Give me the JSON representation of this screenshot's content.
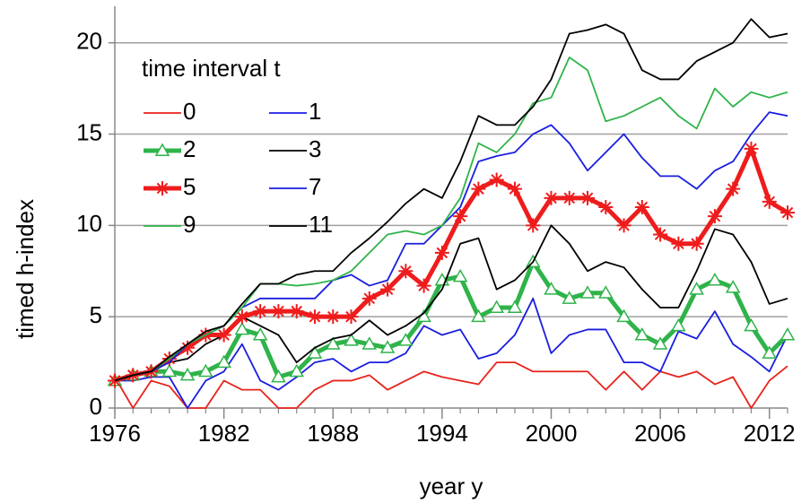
{
  "chart_data": {
    "type": "line",
    "xlabel": "year y",
    "ylabel": "timed h-index",
    "legend_title": "time interval t",
    "x": [
      1976,
      1977,
      1978,
      1979,
      1980,
      1981,
      1982,
      1983,
      1984,
      1985,
      1986,
      1987,
      1988,
      1989,
      1990,
      1991,
      1992,
      1993,
      1994,
      1995,
      1996,
      1997,
      1998,
      1999,
      2000,
      2001,
      2002,
      2003,
      2004,
      2005,
      2006,
      2007,
      2008,
      2009,
      2010,
      2011,
      2012,
      2013
    ],
    "xlim": [
      1976,
      2013
    ],
    "xticks": [
      1976,
      1982,
      1988,
      1994,
      2000,
      2006,
      2012
    ],
    "ylim": [
      0,
      22
    ],
    "yticks": [
      0,
      5,
      10,
      15,
      20
    ],
    "grid": true,
    "legend": "upper left",
    "series": [
      {
        "name": "0",
        "color": "#e8231c",
        "width": 1.8,
        "values": [
          1.7,
          0,
          1.5,
          1.2,
          0,
          0,
          1.5,
          1,
          1,
          0,
          0,
          1,
          1.5,
          1.5,
          1.8,
          1,
          1.5,
          2,
          1.7,
          1.5,
          1.3,
          2.5,
          2.5,
          2,
          2,
          2,
          2,
          1,
          2,
          1,
          2,
          1.7,
          2,
          1.3,
          1.7,
          0,
          1.5,
          2.3
        ]
      },
      {
        "name": "1",
        "color": "#1a1ee0",
        "width": 1.8,
        "values": [
          1.5,
          1.5,
          1.7,
          1.7,
          0,
          1.5,
          2,
          3.5,
          1.5,
          1,
          1.7,
          2.5,
          2.7,
          2,
          2.5,
          2.5,
          3,
          4.5,
          4,
          4.3,
          2.7,
          3,
          4,
          6,
          3,
          4,
          4.3,
          4.3,
          2.5,
          2.5,
          2,
          4.2,
          3.8,
          5.3,
          3.5,
          2.8,
          2,
          4
        ]
      },
      {
        "name": "2",
        "color": "#2fb34a",
        "width": 5,
        "marker": "triangle",
        "values": [
          1.5,
          1.8,
          2,
          2,
          1.8,
          2,
          2.5,
          4.3,
          4,
          1.7,
          2,
          3,
          3.5,
          3.7,
          3.5,
          3.3,
          3.7,
          5,
          7,
          7.2,
          5,
          5.5,
          5.5,
          8,
          6.5,
          6,
          6.3,
          6.3,
          5,
          4,
          3.5,
          4.5,
          6.5,
          7,
          6.6,
          4.5,
          3,
          4
        ]
      },
      {
        "name": "3",
        "color": "#000000",
        "width": 1.8,
        "values": [
          1.5,
          1.8,
          2,
          2.5,
          2.7,
          3.5,
          4,
          5,
          4.5,
          4,
          2.5,
          3.3,
          3.8,
          4,
          4.8,
          4,
          4.5,
          5.2,
          6.5,
          9,
          9.3,
          6.5,
          7,
          8,
          10,
          9,
          7.5,
          8,
          7.7,
          6.5,
          5.5,
          5.5,
          7.5,
          9.8,
          9.5,
          8,
          5.7,
          6
        ]
      },
      {
        "name": "5",
        "color": "#ee1c1c",
        "width": 5,
        "marker": "star",
        "values": [
          1.5,
          1.8,
          2,
          2.7,
          3.3,
          4,
          4,
          5,
          5.3,
          5.3,
          5.3,
          5,
          5,
          5,
          6,
          6.5,
          7.5,
          6.7,
          8.5,
          10.5,
          12,
          12.5,
          12,
          10,
          11.5,
          11.5,
          11.5,
          11,
          10,
          11,
          9.5,
          9,
          9,
          10.5,
          12,
          14.2,
          11.3,
          10.7
        ]
      },
      {
        "name": "7",
        "color": "#1a1ee0",
        "width": 1.8,
        "values": [
          1.5,
          1.8,
          2,
          2.5,
          3.5,
          4,
          4.5,
          5.5,
          6,
          6,
          6,
          6,
          7,
          7.3,
          6.7,
          7,
          9,
          9,
          10,
          11,
          13.5,
          13.8,
          14,
          15,
          15.5,
          14.5,
          13,
          14,
          15,
          13.7,
          12.7,
          12.7,
          12,
          13,
          13.5,
          15,
          16.2,
          16
        ]
      },
      {
        "name": "9",
        "color": "#2fb34a",
        "width": 1.8,
        "values": [
          1.5,
          1.8,
          2,
          2.7,
          3.5,
          4,
          4.5,
          5.5,
          6.8,
          6.8,
          6.7,
          6.8,
          7,
          7.5,
          8.5,
          9.5,
          9.7,
          9.5,
          10,
          11.5,
          14.5,
          14,
          15,
          16.7,
          17,
          19.2,
          18.5,
          15.7,
          16,
          16.5,
          17,
          16,
          15.3,
          17.5,
          16.5,
          17.3,
          17,
          17.3
        ]
      },
      {
        "name": "11",
        "color": "#000000",
        "width": 1.8,
        "values": [
          1.5,
          1.8,
          2,
          2.8,
          3.5,
          4.2,
          4.5,
          5.7,
          6.8,
          6.8,
          7.3,
          7.5,
          7.5,
          8.5,
          9.3,
          10.2,
          11.2,
          12,
          11.5,
          13.5,
          16,
          15.5,
          15.5,
          16.5,
          18,
          20.5,
          20.7,
          21,
          20.5,
          18.5,
          18,
          18,
          19,
          19.5,
          20,
          21.3,
          20.3,
          20.5
        ]
      }
    ]
  }
}
